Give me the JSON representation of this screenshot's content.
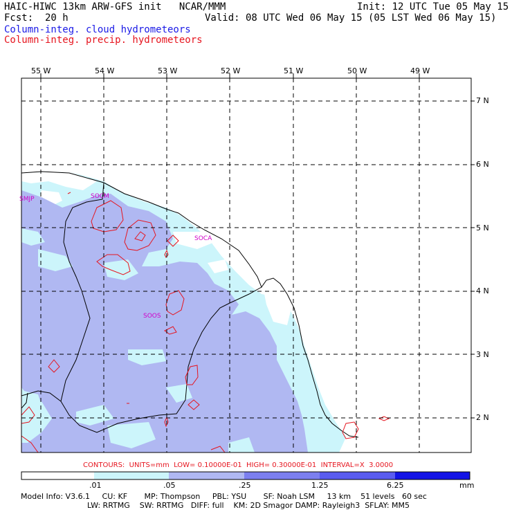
{
  "header": {
    "line1_left": "HAIC-HIWC 13km ARW-GFS init   NCAR/MMM",
    "line1_right": "Init: 12 UTC Tue 05 May 15",
    "line2_left": "Fcst:  20 h",
    "line2_right": "Valid: 08 UTC Wed 06 May 15 (05 LST Wed 06 May 15)",
    "legend_cloud": "Column-integ. cloud hydrometeors",
    "legend_precip": "Column-integ. precip. hydrometeors"
  },
  "map": {
    "lon_labels": [
      "55 W",
      "54 W",
      "53 W",
      "52 W",
      "51 W",
      "50 W",
      "49 W"
    ],
    "lat_labels": [
      "7 N",
      "6 N",
      "5 N",
      "4 N",
      "3 N",
      "2 N"
    ],
    "stations": [
      {
        "id": "SMJP"
      },
      {
        "id": "SOCM"
      },
      {
        "id": "SOCA"
      },
      {
        "id": "SOOS"
      }
    ]
  },
  "contours_label": "CONTOURS:  UNITS=mm  LOW= 0.10000E-01  HIGH= 0.30000E-01  INTERVAL=X  3.0000",
  "colorbar": {
    "thresholds": [
      ".01",
      ".05",
      ".25",
      "1.25",
      "6.25"
    ],
    "unit": "mm",
    "colors": [
      "#ffffff",
      "#ccf5fb",
      "#b0b8f2",
      "#7c7ff0",
      "#5a5cf0",
      "#1414e6"
    ]
  },
  "model_info": {
    "line1": "Model Info: V3.6.1     CU: KF       MP: Thompson     PBL: YSU       SF: Noah LSM     13 km    51 levels   60 sec",
    "line2": "LW: RRTMG    SW: RRTMG   DIFF: full    KM: 2D Smagor DAMP: Rayleigh3  SFLAY: MM5"
  }
}
